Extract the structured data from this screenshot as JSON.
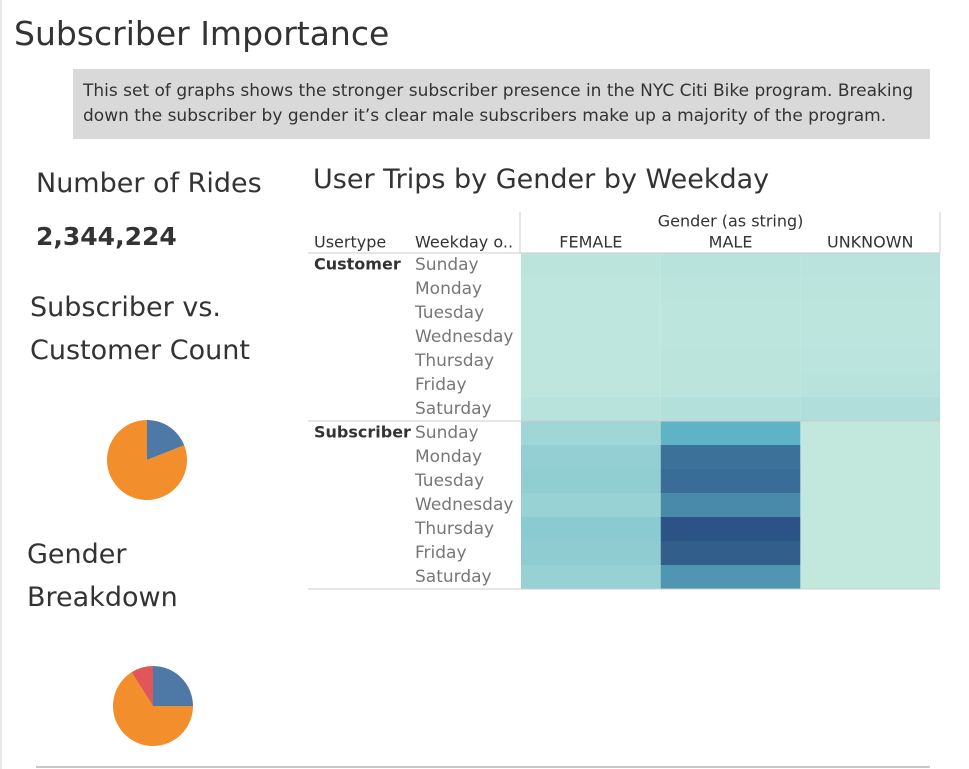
{
  "title": "Subscriber Importance",
  "description": "This set of graphs shows the stronger subscriber presence in the NYC Citi Bike program. Breaking down the subscriber by gender it’s clear male subscribers make up a majority of the program.",
  "kpi": {
    "title": "Number of Rides",
    "value": "2,344,224"
  },
  "chart_data": [
    {
      "type": "pie",
      "title": "Subscriber vs. Customer Count",
      "values": [
        19,
        81
      ],
      "colors": [
        "#4e79a7",
        "#f28e2b"
      ]
    },
    {
      "type": "pie",
      "title": "Gender Breakdown",
      "values": [
        25,
        66,
        9
      ],
      "colors": [
        "#4e79a7",
        "#f28e2b",
        "#e15759"
      ]
    },
    {
      "type": "heatmap",
      "title": "User Trips by Gender by Weekday",
      "column_title": "Gender (as string)",
      "row_titles": [
        "Usertype",
        "Weekday o.."
      ],
      "groups": [
        "Customer",
        "Subscriber"
      ],
      "rows": [
        "Sunday",
        "Monday",
        "Tuesday",
        "Wednesday",
        "Thursday",
        "Friday",
        "Saturday"
      ],
      "columns": [
        "FEMALE",
        "MALE",
        "UNKNOWN"
      ],
      "values": [
        [
          [
            12000,
            16000,
            14000
          ],
          [
            8000,
            11000,
            11000
          ],
          [
            7000,
            10000,
            10000
          ],
          [
            7000,
            10000,
            10000
          ],
          [
            7000,
            11000,
            13000
          ],
          [
            8000,
            12000,
            15000
          ],
          [
            16000,
            21000,
            26000
          ]
        ],
        [
          [
            45000,
            130000,
            3000
          ],
          [
            62000,
            215000,
            3000
          ],
          [
            66000,
            222000,
            3000
          ],
          [
            55000,
            185000,
            3000
          ],
          [
            75000,
            255000,
            3000
          ],
          [
            70000,
            240000,
            3000
          ],
          [
            58000,
            168000,
            3000
          ]
        ]
      ],
      "color_range": [
        0,
        260000
      ],
      "colors": [
        "#c4e9df",
        "#5fb3c6",
        "#2a4f82"
      ]
    }
  ]
}
